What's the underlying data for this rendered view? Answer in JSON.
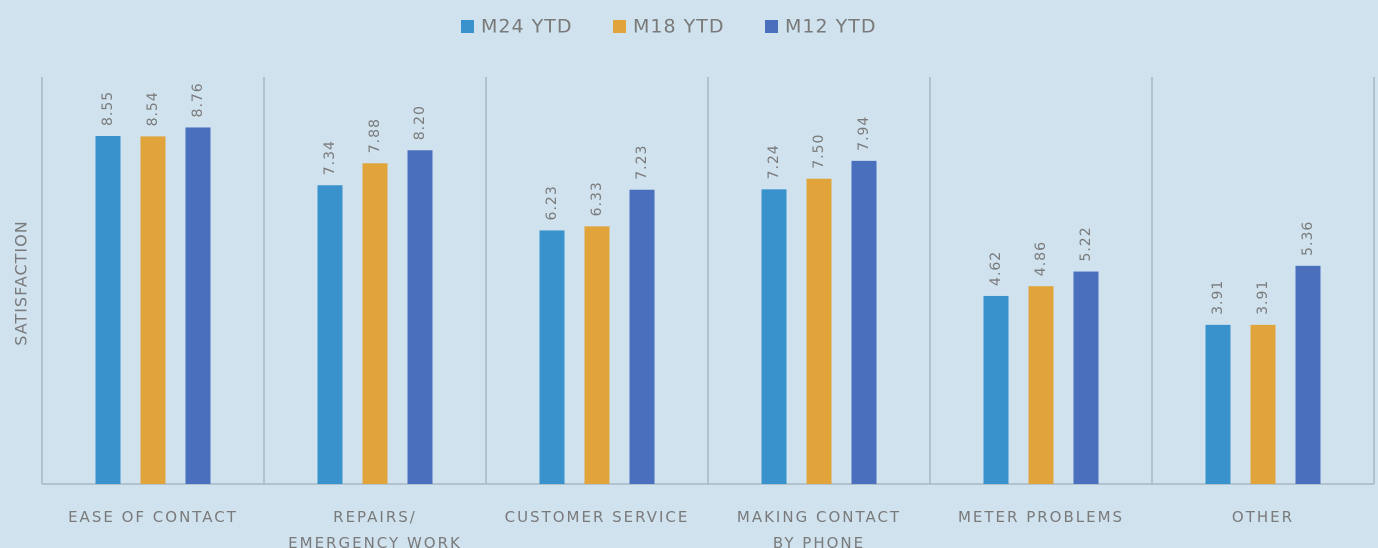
{
  "chart_data": {
    "type": "bar",
    "y_label": "SATISFACTION",
    "categories": [
      "EASE OF CONTACT",
      "REPAIRS/\nEMERGENCY WORK",
      "CUSTOMER SERVICE",
      "MAKING CONTACT\nBY PHONE",
      "METER PROBLEMS",
      "OTHER"
    ],
    "series": [
      {
        "name": "M24 YTD",
        "color": "#3a92cd",
        "values": [
          8.55,
          7.34,
          6.23,
          7.24,
          4.62,
          3.91
        ],
        "value_labels": [
          "8.55",
          "7.34",
          "6.23",
          "7.24",
          "4.62",
          "3.91"
        ]
      },
      {
        "name": "M18 YTD",
        "color": "#e0a43a",
        "values": [
          8.54,
          7.88,
          6.33,
          7.5,
          4.86,
          3.91
        ],
        "value_labels": [
          "8.54",
          "7.88",
          "6.33",
          "7.50",
          "4.86",
          "3.91"
        ]
      },
      {
        "name": "M12 YTD",
        "color": "#4a6fbd",
        "values": [
          8.76,
          8.2,
          7.23,
          7.94,
          5.22,
          5.36
        ],
        "value_labels": [
          "8.76",
          "8.20",
          "7.23",
          "7.94",
          "5.22",
          "5.36"
        ]
      }
    ],
    "ylim": [
      0,
      10
    ]
  }
}
